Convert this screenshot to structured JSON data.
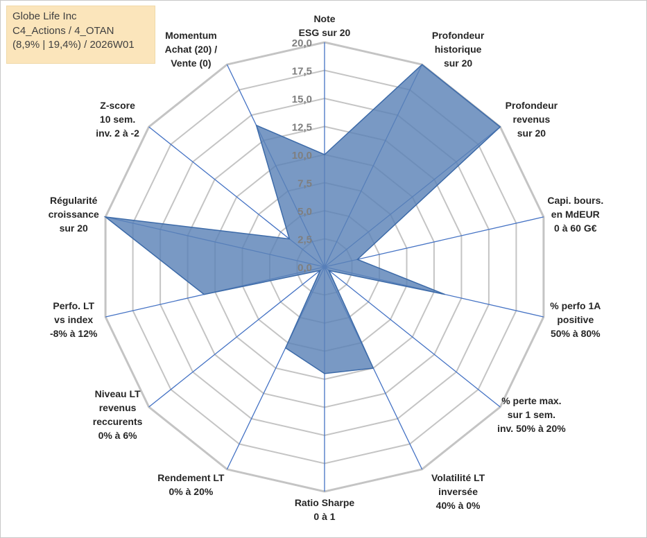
{
  "info_box": {
    "line1": "Globe Life Inc",
    "line2": "C4_Actions / 4_OTAN",
    "line3": "(8,9% | 19,4%) / 2026W01"
  },
  "chart_data": {
    "type": "radar",
    "rmin": 0,
    "rmax": 20,
    "tick_values": [
      0,
      2.5,
      5,
      7.5,
      10,
      12.5,
      15,
      17.5,
      20
    ],
    "tick_labels": [
      "0,0",
      "2,5",
      "5,0",
      "7,5",
      "10,0",
      "12,5",
      "15,0",
      "17,5",
      "20,0"
    ],
    "grid": true,
    "colors": {
      "fill": "#5b83b7",
      "fill_opacity": 0.82,
      "stroke": "#3c6aa8",
      "axis": "#4472c4",
      "grid": "#c4c4c4"
    },
    "axes": [
      {
        "label": [
          "Note",
          "ESG sur 20"
        ],
        "value": 10
      },
      {
        "label": [
          "Profondeur",
          "historique",
          "sur 20"
        ],
        "value": 20
      },
      {
        "label": [
          "Profondeur",
          "revenus",
          "sur 20"
        ],
        "value": 20
      },
      {
        "label": [
          "Capi. bours.",
          "en MdEUR",
          "0 à 60 G€"
        ],
        "value": 3
      },
      {
        "label": [
          "% perfo 1A",
          "positive",
          "50% à 80%"
        ],
        "value": 11
      },
      {
        "label": [
          "% perte max.",
          "sur 1 sem.",
          "inv. 50% à 20%"
        ],
        "value": 0.5
      },
      {
        "label": [
          "Volatilité LT",
          "inversée",
          "40% à 0%"
        ],
        "value": 10
      },
      {
        "label": [
          "Ratio Sharpe",
          "0 à 1"
        ],
        "value": 9.5
      },
      {
        "label": [
          "Rendement LT",
          "0% à 20%"
        ],
        "value": 8
      },
      {
        "label": [
          "Niveau LT",
          "revenus",
          "reccurents",
          "0% à 6%"
        ],
        "value": 0.5
      },
      {
        "label": [
          "Perfo. LT",
          "vs index",
          "-8% à 12%"
        ],
        "value": 11
      },
      {
        "label": [
          "Régularité",
          "croissance",
          "sur 20"
        ],
        "value": 20
      },
      {
        "label": [
          "Z-score",
          "10 sem.",
          "inv. 2 à -2"
        ],
        "value": 4
      },
      {
        "label": [
          "Momentum",
          "Achat (20) /",
          "Vente (0)"
        ],
        "value": 14
      }
    ]
  }
}
